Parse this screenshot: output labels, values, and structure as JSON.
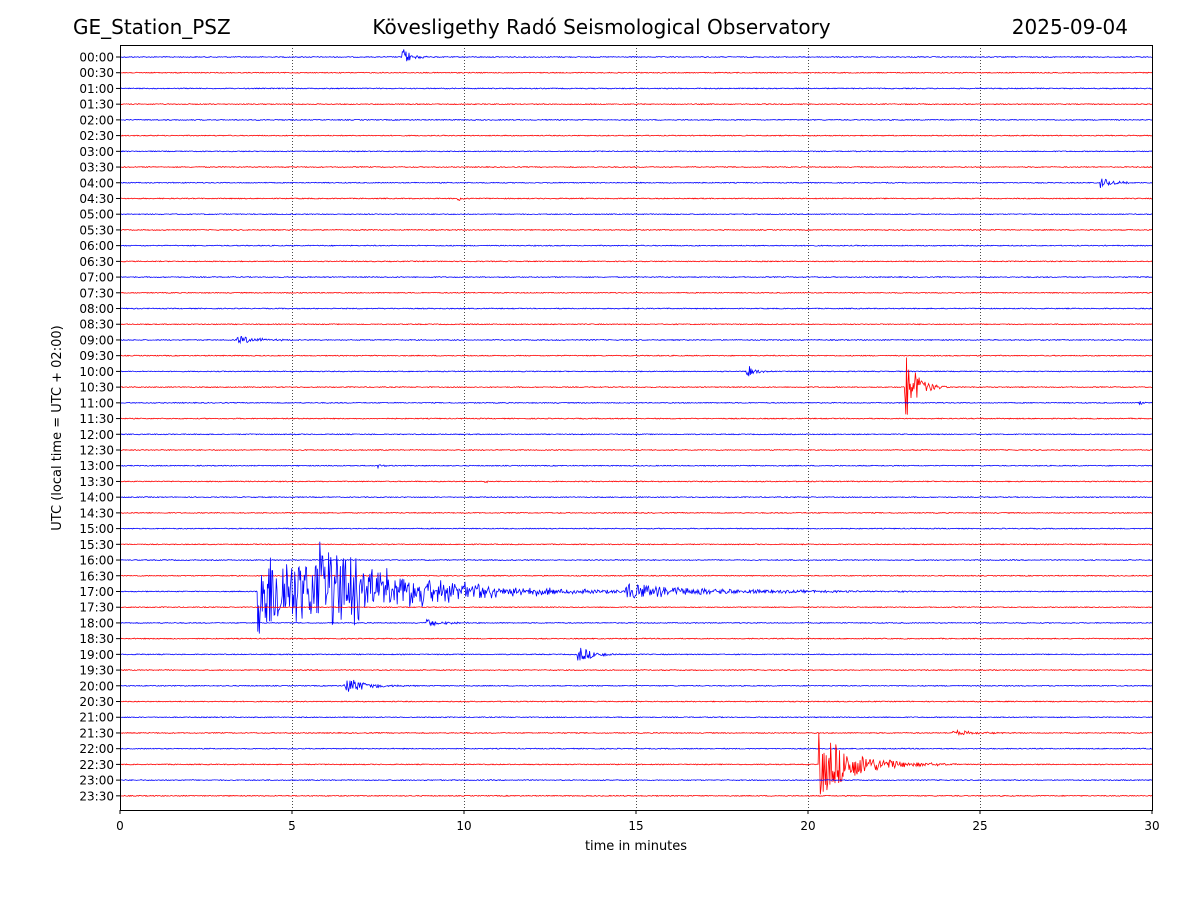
{
  "header": {
    "station": "GE_Station_PSZ",
    "observatory": "Kövesligethy Radó Seismological Observatory",
    "date": "2025-09-04"
  },
  "chart_data": {
    "type": "line",
    "title": "Kövesligethy Radó Seismological Observatory",
    "xlabel": "time in minutes",
    "ylabel": "UTC (local time = UTC + 02:00)",
    "xlim": [
      0,
      30
    ],
    "xticks": [
      0,
      5,
      10,
      15,
      20,
      25,
      30
    ],
    "grid": "vertical dotted at 5-minute intervals",
    "colors": {
      "even_rows": "#0000ff",
      "odd_rows": "#ff0000",
      "grid": "#000000"
    },
    "rows": [
      "00:00",
      "00:30",
      "01:00",
      "01:30",
      "02:00",
      "02:30",
      "03:00",
      "03:30",
      "04:00",
      "04:30",
      "05:00",
      "05:30",
      "06:00",
      "06:30",
      "07:00",
      "07:30",
      "08:00",
      "08:30",
      "09:00",
      "09:30",
      "10:00",
      "10:30",
      "11:00",
      "11:30",
      "12:00",
      "12:30",
      "13:00",
      "13:30",
      "14:00",
      "14:30",
      "15:00",
      "15:30",
      "16:00",
      "16:30",
      "17:00",
      "17:30",
      "18:00",
      "18:30",
      "19:00",
      "19:30",
      "20:00",
      "20:30",
      "21:00",
      "21:30",
      "22:00",
      "22:30",
      "23:00",
      "23:30"
    ],
    "events": [
      {
        "row": "00:00",
        "start_min": 8.2,
        "amplitude": 0.7,
        "duration_min": 1.0
      },
      {
        "row": "04:00",
        "start_min": 28.5,
        "amplitude": 0.35,
        "duration_min": 1.5
      },
      {
        "row": "04:30",
        "start_min": 9.8,
        "amplitude": 0.25,
        "duration_min": 0.6
      },
      {
        "row": "09:00",
        "start_min": 3.4,
        "amplitude": 0.3,
        "duration_min": 2.5
      },
      {
        "row": "10:00",
        "start_min": 18.2,
        "amplitude": 0.6,
        "duration_min": 0.8
      },
      {
        "row": "10:30",
        "start_min": 22.8,
        "amplitude": 2.8,
        "duration_min": 1.3
      },
      {
        "row": "11:00",
        "start_min": 29.6,
        "amplitude": 0.25,
        "duration_min": 0.4
      },
      {
        "row": "13:00",
        "start_min": 7.5,
        "amplitude": 0.2,
        "duration_min": 0.6
      },
      {
        "row": "13:30",
        "start_min": 10.6,
        "amplitude": 0.2,
        "duration_min": 0.3
      },
      {
        "row": "17:00",
        "start_min": 4.0,
        "amplitude": 3.2,
        "duration_min": 12.0
      },
      {
        "row": "17:00",
        "start_min": 5.7,
        "amplitude": 2.6,
        "duration_min": 8.0
      },
      {
        "row": "17:00",
        "start_min": 14.7,
        "amplitude": 0.5,
        "duration_min": 11.0
      },
      {
        "row": "18:00",
        "start_min": 8.9,
        "amplitude": 0.3,
        "duration_min": 1.8
      },
      {
        "row": "19:00",
        "start_min": 13.3,
        "amplitude": 0.6,
        "duration_min": 1.8
      },
      {
        "row": "20:00",
        "start_min": 6.5,
        "amplitude": 0.7,
        "duration_min": 2.2
      },
      {
        "row": "21:30",
        "start_min": 24.2,
        "amplitude": 0.2,
        "duration_min": 2.6
      },
      {
        "row": "22:30",
        "start_min": 20.3,
        "amplitude": 2.4,
        "duration_min": 4.0
      }
    ]
  }
}
